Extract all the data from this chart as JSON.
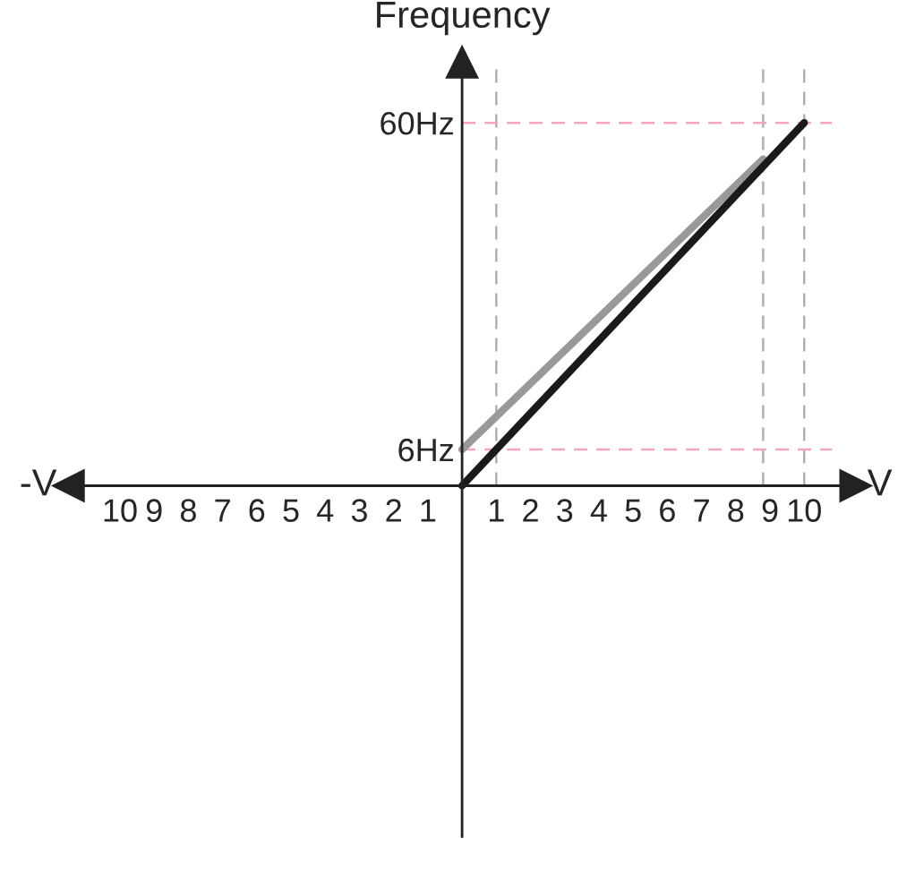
{
  "chart_data": {
    "type": "line",
    "ylabel": "Frequency",
    "xlabel": "V",
    "annotations": [
      "-V"
    ],
    "series": [
      {
        "color": "#999999",
        "x": [
          0,
          8.8
        ],
        "values": [
          6,
          54
        ]
      },
      {
        "color": "#1a1a1a",
        "x": [
          0,
          10
        ],
        "values": [
          0,
          60
        ]
      }
    ],
    "xlim": [
      -11.5,
      11.5
    ],
    "ylim": [
      -58,
      70
    ],
    "xticks": [
      {
        "value": -10,
        "label": "10"
      },
      {
        "value": -9,
        "label": "9"
      },
      {
        "value": -8,
        "label": "8"
      },
      {
        "value": -7,
        "label": "7"
      },
      {
        "value": -6,
        "label": "6"
      },
      {
        "value": -5,
        "label": "5"
      },
      {
        "value": -4,
        "label": "4"
      },
      {
        "value": -3,
        "label": "3"
      },
      {
        "value": -2,
        "label": "2"
      },
      {
        "value": -1,
        "label": "1"
      },
      1,
      2,
      3,
      4,
      5,
      6,
      7,
      8,
      9,
      10
    ],
    "yticks": [
      {
        "value": 6,
        "label": "6Hz"
      },
      {
        "value": 60,
        "label": "60Hz"
      }
    ],
    "ref_lines": [
      {
        "axis": "x",
        "value": 1,
        "color": "#b0b0b0",
        "line_style": "dashed"
      },
      {
        "axis": "x",
        "value": 8.8,
        "color": "#b0b0b0",
        "line_style": "dashed"
      },
      {
        "axis": "x",
        "value": 10,
        "color": "#b0b0b0",
        "line_style": "dashed"
      },
      {
        "axis": "y",
        "value": 6,
        "color": "#f4a6c0",
        "line_style": "dashed"
      },
      {
        "axis": "y",
        "value": 60,
        "color": "#f4a6c0",
        "line_style": "dashed"
      }
    ],
    "grid": false,
    "legend": false,
    "marker": "none",
    "line_style": "solid"
  }
}
